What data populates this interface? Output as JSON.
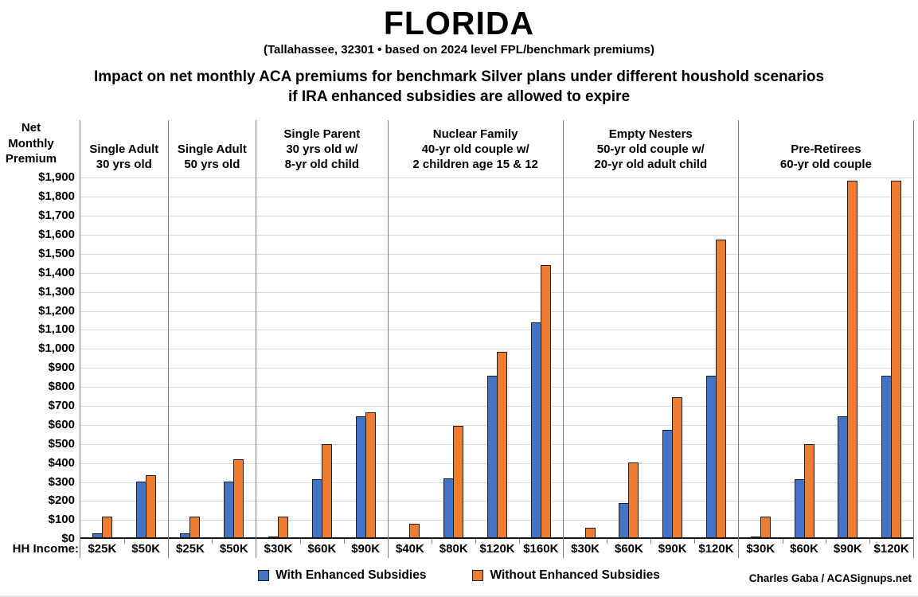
{
  "header": {
    "title": "FLORIDA",
    "subtitle": "(Tallahassee, 32301 • based on 2024 level FPL/benchmark premiums)",
    "heading_line1": "Impact on net monthly ACA premiums for benchmark Silver plans under different houshold scenarios",
    "heading_line2": "if IRA enhanced subsidies are allowed to expire"
  },
  "chart_data": {
    "type": "bar",
    "y_axis_title": "Net\nMonthly\nPremium",
    "x_axis_prefix": "HH Income:",
    "ylim": [
      0,
      1900
    ],
    "tick_step": 100,
    "grid": true,
    "y_tick_labels": [
      "$0",
      "$100",
      "$200",
      "$300",
      "$400",
      "$500",
      "$600",
      "$700",
      "$800",
      "$900",
      "$1,000",
      "$1,100",
      "$1,200",
      "$1,300",
      "$1,400",
      "$1,500",
      "$1,600",
      "$1,700",
      "$1,800",
      "$1,900"
    ],
    "series": [
      {
        "name": "With Enhanced Subsidies",
        "color": "#4472C4"
      },
      {
        "name": "Without Enhanced Subsidies",
        "color": "#ED7D31"
      }
    ],
    "groups": [
      {
        "label": "Single Adult\n30 yrs old",
        "categories": [
          "$25K",
          "$50K"
        ],
        "with_enhanced": [
          20,
          295
        ],
        "without_enhanced": [
          110,
          325
        ]
      },
      {
        "label": "Single Adult\n50 yrs old",
        "categories": [
          "$25K",
          "$50K"
        ],
        "with_enhanced": [
          20,
          295
        ],
        "without_enhanced": [
          110,
          410
        ]
      },
      {
        "label": "Single Parent\n30 yrs old w/\n8-yr old child",
        "categories": [
          "$30K",
          "$60K",
          "$90K"
        ],
        "with_enhanced": [
          5,
          305,
          635
        ],
        "without_enhanced": [
          110,
          490,
          655
        ]
      },
      {
        "label": "Nuclear Family\n40-yr old couple w/\n2 children age 15 & 12",
        "categories": [
          "$40K",
          "$80K",
          "$120K",
          "$160K"
        ],
        "with_enhanced": [
          0,
          310,
          850,
          1130
        ],
        "without_enhanced": [
          70,
          585,
          975,
          1430
        ]
      },
      {
        "label": "Empty Nesters\n50-yr old couple w/\n20-yr old adult child",
        "categories": [
          "$30K",
          "$60K",
          "$90K",
          "$120K"
        ],
        "with_enhanced": [
          0,
          180,
          565,
          850
        ],
        "without_enhanced": [
          50,
          395,
          735,
          1565
        ]
      },
      {
        "label": "Pre-Retirees\n60-yr old couple",
        "categories": [
          "$30K",
          "$60K",
          "$90K",
          "$120K"
        ],
        "with_enhanced": [
          5,
          305,
          635,
          850
        ],
        "without_enhanced": [
          110,
          490,
          1875,
          1875
        ]
      }
    ],
    "legend_position": "bottom"
  },
  "legend": {
    "items": [
      {
        "label": "With Enhanced Subsidies",
        "color": "#4472C4"
      },
      {
        "label": "Without Enhanced Subsidies",
        "color": "#ED7D31"
      }
    ]
  },
  "footer": {
    "credit": "Charles Gaba / ACASignups.net"
  },
  "colors": {
    "grid": "#d9d9d9",
    "separator": "#7f7f7f",
    "axis": "#161616",
    "background": "#ffffff"
  }
}
